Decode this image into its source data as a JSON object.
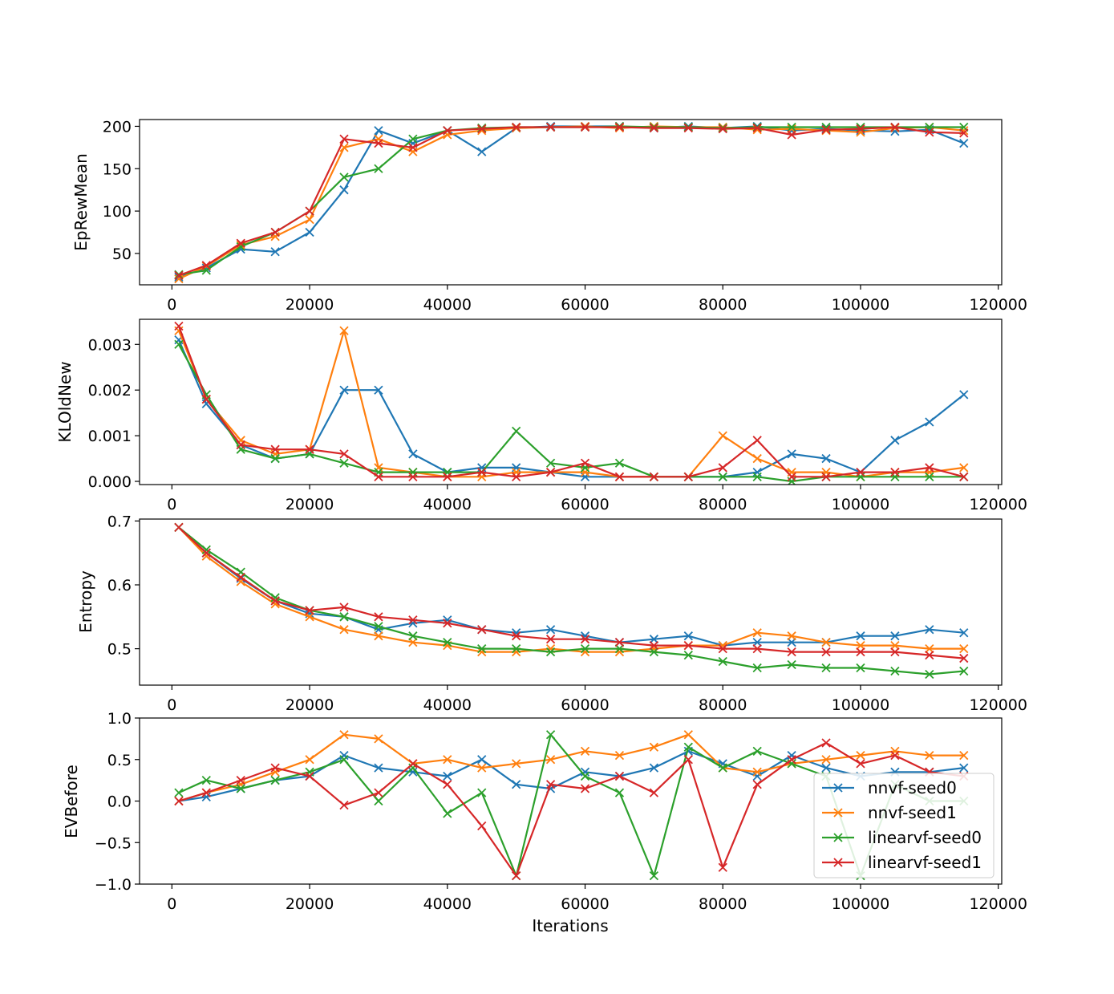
{
  "figure": {
    "xlabel": "Iterations",
    "xticks": [
      0,
      20000,
      40000,
      60000,
      80000,
      100000,
      120000
    ],
    "xlim": [
      -4700,
      120500
    ]
  },
  "legend": {
    "position": "bottom-right of last panel",
    "entries": [
      {
        "name": "nnvf-seed0",
        "color": "#1f77b4"
      },
      {
        "name": "nnvf-seed1",
        "color": "#ff7f0e"
      },
      {
        "name": "linearvf-seed0",
        "color": "#2ca02c"
      },
      {
        "name": "linearvf-seed1",
        "color": "#d62728"
      }
    ]
  },
  "chart_data": [
    {
      "type": "line",
      "marker": "x",
      "title": "",
      "xlabel": "",
      "ylabel": "EpRewMean",
      "ylim": [
        13,
        208
      ],
      "yticks": [
        50,
        100,
        150,
        200
      ],
      "x": [
        1000,
        5000,
        10000,
        15000,
        20000,
        25000,
        30000,
        35000,
        40000,
        45000,
        50000,
        55000,
        60000,
        65000,
        70000,
        75000,
        80000,
        85000,
        90000,
        95000,
        100000,
        105000,
        110000,
        115000
      ],
      "series": [
        {
          "name": "nnvf-seed0",
          "values": [
            22,
            33,
            55,
            52,
            75,
            125,
            195,
            180,
            195,
            170,
            198,
            200,
            200,
            200,
            198,
            200,
            198,
            200,
            195,
            197,
            195,
            194,
            196,
            180
          ]
        },
        {
          "name": "nnvf-seed1",
          "values": [
            20,
            35,
            60,
            70,
            90,
            175,
            185,
            170,
            190,
            195,
            198,
            199,
            200,
            198,
            200,
            199,
            199,
            196,
            197,
            195,
            193,
            198,
            199,
            195
          ]
        },
        {
          "name": "linearvf-seed0",
          "values": [
            25,
            30,
            58,
            75,
            100,
            140,
            150,
            185,
            195,
            198,
            199,
            199,
            199,
            200,
            199,
            199,
            198,
            199,
            199,
            199,
            199,
            199,
            199,
            199
          ]
        },
        {
          "name": "linearvf-seed1",
          "values": [
            24,
            36,
            62,
            75,
            100,
            185,
            180,
            175,
            195,
            197,
            199,
            199,
            199,
            199,
            198,
            198,
            197,
            198,
            190,
            196,
            197,
            199,
            193,
            192
          ]
        }
      ]
    },
    {
      "type": "line",
      "marker": "x",
      "title": "",
      "xlabel": "",
      "ylabel": "KLOldNew",
      "ylim": [
        -7e-05,
        0.00355
      ],
      "yticks": [
        0.0,
        0.001,
        0.002,
        0.003
      ],
      "x": [
        1000,
        5000,
        10000,
        15000,
        20000,
        25000,
        30000,
        35000,
        40000,
        45000,
        50000,
        55000,
        60000,
        65000,
        70000,
        75000,
        80000,
        85000,
        90000,
        95000,
        100000,
        105000,
        110000,
        115000
      ],
      "series": [
        {
          "name": "nnvf-seed0",
          "values": [
            0.0031,
            0.0017,
            0.0008,
            0.0005,
            0.0006,
            0.002,
            0.002,
            0.0006,
            0.0002,
            0.0003,
            0.0003,
            0.0002,
            0.0001,
            0.0001,
            0.0001,
            0.0001,
            0.0001,
            0.0002,
            0.0006,
            0.0005,
            0.0002,
            0.0009,
            0.0013,
            0.0019
          ]
        },
        {
          "name": "nnvf-seed1",
          "values": [
            0.0033,
            0.0018,
            0.0009,
            0.0006,
            0.0007,
            0.0033,
            0.0003,
            0.0002,
            0.0001,
            0.0001,
            0.0002,
            0.0002,
            0.0002,
            0.0001,
            0.0001,
            0.0001,
            0.001,
            0.0005,
            0.0002,
            0.0002,
            0.0001,
            0.0002,
            0.0002,
            0.0003
          ]
        },
        {
          "name": "linearvf-seed0",
          "values": [
            0.003,
            0.0019,
            0.0007,
            0.0005,
            0.0006,
            0.0004,
            0.0002,
            0.0002,
            0.0002,
            0.0002,
            0.0011,
            0.0004,
            0.0003,
            0.0004,
            0.0001,
            0.0001,
            0.0001,
            0.0001,
            0.0,
            0.0001,
            0.0001,
            0.0001,
            0.0001,
            0.0001
          ]
        },
        {
          "name": "linearvf-seed1",
          "values": [
            0.0034,
            0.0018,
            0.0008,
            0.0007,
            0.0007,
            0.0006,
            0.0001,
            0.0001,
            0.0001,
            0.0002,
            0.0001,
            0.0002,
            0.0004,
            0.0001,
            0.0001,
            0.0001,
            0.0003,
            0.0009,
            0.0001,
            0.0001,
            0.0002,
            0.0002,
            0.0003,
            0.0001
          ]
        }
      ]
    },
    {
      "type": "line",
      "marker": "x",
      "title": "",
      "xlabel": "",
      "ylabel": "Entropy",
      "ylim": [
        0.443,
        0.703
      ],
      "yticks": [
        0.5,
        0.6,
        0.7
      ],
      "x": [
        1000,
        5000,
        10000,
        15000,
        20000,
        25000,
        30000,
        35000,
        40000,
        45000,
        50000,
        55000,
        60000,
        65000,
        70000,
        75000,
        80000,
        85000,
        90000,
        95000,
        100000,
        105000,
        110000,
        115000
      ],
      "series": [
        {
          "name": "nnvf-seed0",
          "values": [
            0.69,
            0.65,
            0.61,
            0.575,
            0.555,
            0.55,
            0.53,
            0.54,
            0.545,
            0.53,
            0.525,
            0.53,
            0.52,
            0.51,
            0.515,
            0.52,
            0.505,
            0.51,
            0.51,
            0.51,
            0.52,
            0.52,
            0.53,
            0.525
          ]
        },
        {
          "name": "nnvf-seed1",
          "values": [
            0.69,
            0.645,
            0.605,
            0.57,
            0.55,
            0.53,
            0.52,
            0.51,
            0.505,
            0.495,
            0.495,
            0.5,
            0.495,
            0.495,
            0.5,
            0.505,
            0.505,
            0.525,
            0.52,
            0.51,
            0.505,
            0.505,
            0.5,
            0.5
          ]
        },
        {
          "name": "linearvf-seed0",
          "values": [
            0.69,
            0.655,
            0.62,
            0.58,
            0.56,
            0.55,
            0.535,
            0.52,
            0.51,
            0.5,
            0.5,
            0.495,
            0.5,
            0.5,
            0.495,
            0.49,
            0.48,
            0.47,
            0.475,
            0.47,
            0.47,
            0.465,
            0.46,
            0.465
          ]
        },
        {
          "name": "linearvf-seed1",
          "values": [
            0.69,
            0.65,
            0.612,
            0.575,
            0.56,
            0.565,
            0.55,
            0.545,
            0.54,
            0.53,
            0.52,
            0.515,
            0.515,
            0.51,
            0.505,
            0.505,
            0.5,
            0.5,
            0.495,
            0.495,
            0.495,
            0.495,
            0.49,
            0.485
          ]
        }
      ]
    },
    {
      "type": "line",
      "marker": "x",
      "title": "",
      "xlabel": "Iterations",
      "ylabel": "EVBefore",
      "ylim": [
        -1.0,
        1.0
      ],
      "yticks": [
        -1.0,
        -0.5,
        0.0,
        0.5,
        1.0
      ],
      "x": [
        1000,
        5000,
        10000,
        15000,
        20000,
        25000,
        30000,
        35000,
        40000,
        45000,
        50000,
        55000,
        60000,
        65000,
        70000,
        75000,
        80000,
        85000,
        90000,
        95000,
        100000,
        105000,
        110000,
        115000
      ],
      "series": [
        {
          "name": "nnvf-seed0",
          "values": [
            0.0,
            0.05,
            0.15,
            0.25,
            0.3,
            0.55,
            0.4,
            0.35,
            0.3,
            0.5,
            0.2,
            0.15,
            0.35,
            0.3,
            0.4,
            0.6,
            0.45,
            0.3,
            0.55,
            0.4,
            0.3,
            0.35,
            0.35,
            0.4
          ]
        },
        {
          "name": "nnvf-seed1",
          "values": [
            0.0,
            0.1,
            0.2,
            0.35,
            0.5,
            0.8,
            0.75,
            0.45,
            0.5,
            0.4,
            0.45,
            0.5,
            0.6,
            0.55,
            0.65,
            0.8,
            0.4,
            0.35,
            0.45,
            0.5,
            0.55,
            0.6,
            0.55,
            0.55
          ]
        },
        {
          "name": "linearvf-seed0",
          "values": [
            0.1,
            0.25,
            0.15,
            0.25,
            0.35,
            0.5,
            0.0,
            0.4,
            -0.15,
            0.1,
            -0.9,
            0.8,
            0.3,
            0.1,
            -0.9,
            0.65,
            0.4,
            0.6,
            0.45,
            0.3,
            -0.9,
            0.2,
            0.0,
            0.0
          ]
        },
        {
          "name": "linearvf-seed1",
          "values": [
            0.0,
            0.1,
            0.25,
            0.4,
            0.3,
            -0.05,
            0.1,
            0.45,
            0.2,
            -0.3,
            -0.9,
            0.2,
            0.15,
            0.3,
            0.1,
            0.5,
            -0.8,
            0.2,
            0.5,
            0.7,
            0.45,
            0.55,
            0.35,
            0.3
          ]
        }
      ]
    }
  ]
}
